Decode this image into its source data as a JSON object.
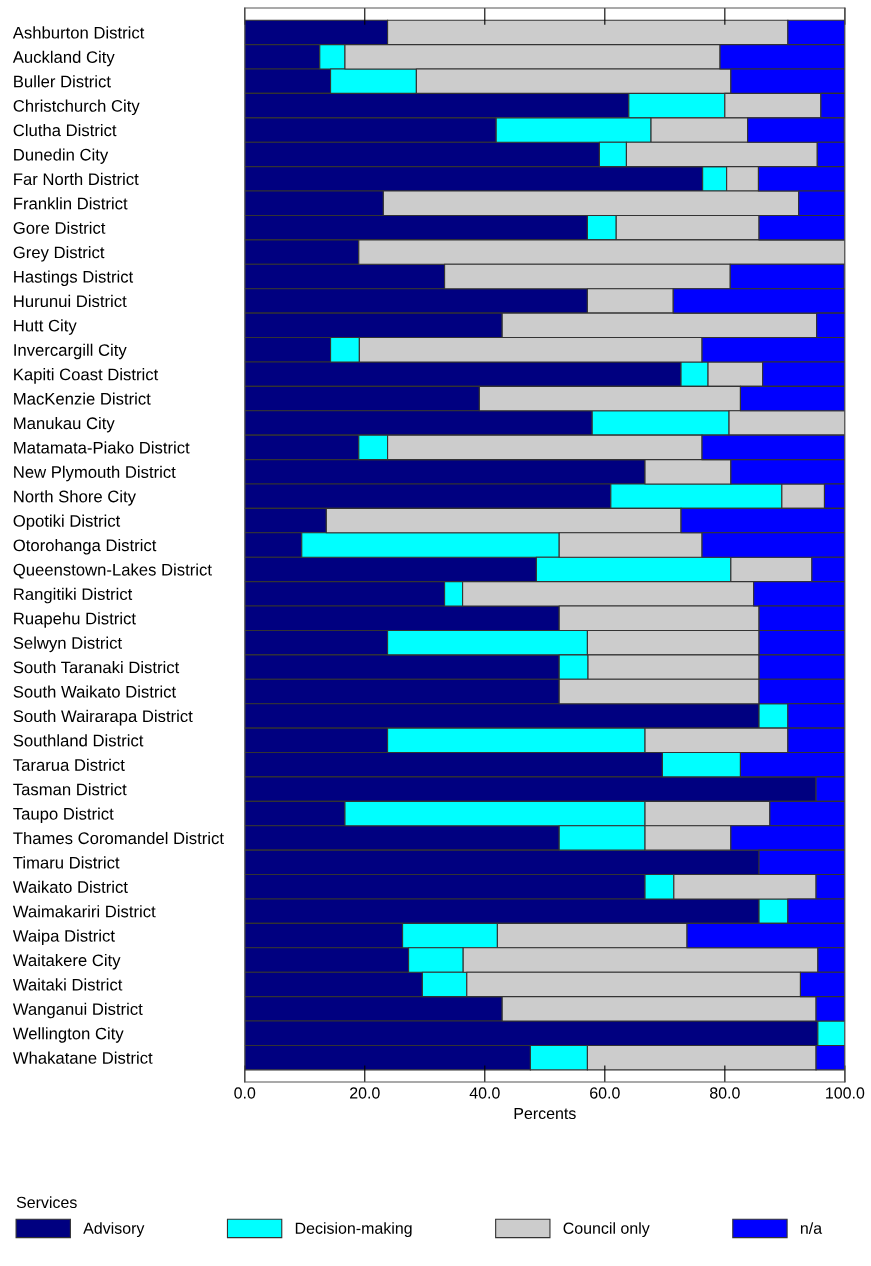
{
  "chart_data": {
    "type": "bar",
    "orientation": "horizontal",
    "stacked": true,
    "categories": [
      "Ashburton District",
      "Auckland City",
      "Buller District",
      "Christchurch City",
      "Clutha District",
      "Dunedin City",
      "Far North District",
      "Franklin District",
      "Gore District",
      "Grey District",
      "Hastings District",
      "Hurunui District",
      "Hutt City",
      "Invercargill City",
      "Kapiti Coast District",
      "MacKenzie District",
      "Manukau City",
      "Matamata-Piako District",
      "New Plymouth District",
      "North Shore City",
      "Opotiki District",
      "Otorohanga District",
      "Queenstown-Lakes District",
      "Rangitiki District",
      "Ruapehu District",
      "Selwyn District",
      "South Taranaki District",
      "South Waikato District",
      "South Wairarapa District",
      "Southland District",
      "Tararua District",
      "Tasman District",
      "Taupo District",
      "Thames Coromandel District",
      "Timaru District",
      "Waikato District",
      "Waimakariri District",
      "Waipa District",
      "Waitakere City",
      "Waitaki District",
      "Wanganui District",
      "Wellington City",
      "Whakatane District"
    ],
    "series": [
      {
        "name": "Advisory",
        "color": "#000080",
        "values": [
          23.8,
          12.5,
          14.3,
          64.0,
          41.9,
          59.1,
          76.3,
          23.1,
          57.1,
          19.0,
          33.3,
          57.1,
          42.9,
          14.3,
          72.7,
          39.1,
          57.9,
          19.0,
          66.7,
          61.0,
          13.6,
          9.5,
          48.6,
          33.3,
          52.4,
          23.8,
          52.4,
          52.4,
          85.7,
          23.8,
          69.6,
          95.2,
          16.7,
          52.4,
          85.7,
          66.7,
          85.7,
          26.3,
          27.3,
          29.6,
          42.9,
          95.5,
          47.6
        ]
      },
      {
        "name": "Decision-making",
        "color": "#00ffff",
        "values": [
          0,
          4.2,
          14.3,
          16.0,
          25.8,
          4.5,
          4.0,
          0,
          4.8,
          0,
          0,
          0,
          0,
          4.8,
          4.5,
          0,
          22.8,
          4.8,
          0,
          28.5,
          0,
          42.9,
          32.4,
          3.0,
          0,
          33.3,
          4.8,
          0,
          4.8,
          42.9,
          13.0,
          0,
          50.0,
          14.3,
          0,
          4.8,
          4.8,
          15.8,
          9.1,
          7.4,
          0,
          4.5,
          9.5
        ]
      },
      {
        "name": "Council only",
        "color": "#cccccc",
        "values": [
          66.7,
          62.5,
          52.4,
          16.0,
          16.1,
          31.8,
          5.3,
          69.2,
          23.8,
          81.0,
          47.6,
          14.3,
          52.4,
          57.1,
          9.1,
          43.5,
          19.3,
          52.4,
          14.3,
          7.1,
          59.1,
          23.8,
          13.5,
          48.5,
          33.3,
          28.6,
          28.5,
          33.3,
          0,
          23.8,
          0,
          0,
          20.8,
          14.3,
          0,
          23.7,
          0,
          31.6,
          59.1,
          55.6,
          52.3,
          0,
          38.1
        ]
      },
      {
        "name": "n/a",
        "color": "#0000ff",
        "values": [
          9.5,
          20.8,
          19.0,
          4.0,
          16.1,
          4.6,
          14.4,
          7.7,
          14.3,
          0,
          19.0,
          28.6,
          4.8,
          23.8,
          13.7,
          17.4,
          0,
          23.8,
          19.0,
          3.4,
          27.3,
          23.8,
          5.5,
          15.2,
          14.3,
          14.3,
          14.3,
          14.3,
          9.5,
          9.5,
          17.4,
          4.8,
          12.5,
          19.0,
          14.3,
          4.8,
          9.5,
          26.3,
          4.5,
          7.4,
          4.8,
          0,
          4.8
        ]
      }
    ],
    "xlabel": "Percents",
    "legend_title": "Services",
    "legend": "bottom",
    "xlim": [
      0,
      100
    ],
    "xticks": [
      {
        "value": 0,
        "label": "0.0"
      },
      {
        "value": 20,
        "label": "20.0"
      },
      {
        "value": 40,
        "label": "40.0"
      },
      {
        "value": 60,
        "label": "60.0"
      },
      {
        "value": 80,
        "label": "80.0"
      },
      {
        "value": 100,
        "label": "100.0"
      }
    ],
    "grid": false
  }
}
